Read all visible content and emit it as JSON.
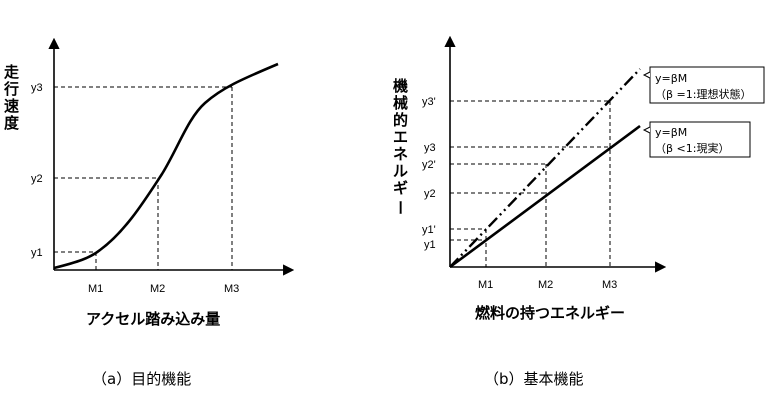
{
  "left_diagram": {
    "caption": "（a）目的機能",
    "y_axis_label": [
      "走",
      "行",
      "速",
      "度"
    ],
    "x_axis_label": "アクセル踏み込み量",
    "x_ticks": [
      "M1",
      "M2",
      "M3"
    ],
    "y_ticks": [
      "y1",
      "y2",
      "y3"
    ]
  },
  "right_diagram": {
    "caption": "（b）基本機能",
    "y_axis_label": [
      "機",
      "械",
      "的",
      "エ",
      "ネ",
      "ル",
      "ギ",
      "ー"
    ],
    "x_axis_label": "燃料の持つエネルギー",
    "x_ticks": [
      "M1",
      "M2",
      "M3"
    ],
    "y_ticks": [
      "y1",
      "y1'",
      "y2",
      "y2'",
      "y3",
      "y3'"
    ],
    "ideal_label": {
      "line1": "y=βM",
      "line2": "（β =1:理想状態）"
    },
    "real_label": {
      "line1": "y=βM",
      "line2": "（β <1:現実）"
    }
  }
}
